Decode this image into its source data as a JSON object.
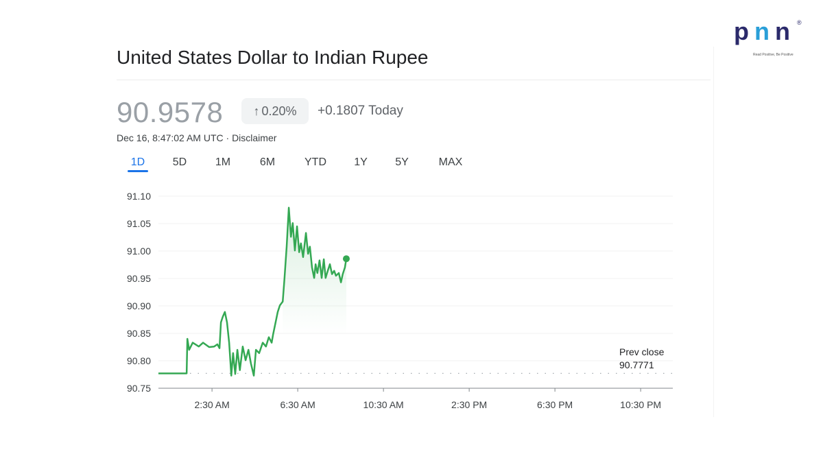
{
  "header": {
    "title": "United States Dollar to Indian Rupee"
  },
  "quote": {
    "price": "90.9578",
    "arrow": "↑",
    "percent": "0.20%",
    "change": "+0.1807 Today",
    "timestamp": "Dec 16, 8:47:02 AM UTC · Disclaimer"
  },
  "tabs": [
    {
      "label": "1D",
      "active": true
    },
    {
      "label": "5D"
    },
    {
      "label": "1M"
    },
    {
      "label": "6M"
    },
    {
      "label": "YTD"
    },
    {
      "label": "1Y"
    },
    {
      "label": "5Y"
    },
    {
      "label": "MAX"
    }
  ],
  "logo": {
    "text": "pnn",
    "tagline": "Read Positive, Be Positive",
    "registered": "®"
  },
  "colors": {
    "line": "#34a853",
    "accent": "#1a73e8",
    "brand_dark": "#2b2a6b",
    "brand_light": "#2a9fd8"
  },
  "chart_data": {
    "type": "line",
    "title": "",
    "xlabel": "",
    "ylabel": "",
    "ylim": [
      90.75,
      91.1
    ],
    "xlim": [
      "00:00",
      "24:00"
    ],
    "yticks": [
      "91.10",
      "91.05",
      "91.00",
      "90.95",
      "90.90",
      "90.85",
      "90.80",
      "90.75"
    ],
    "xticks": [
      {
        "label": "2:30 AM",
        "time": "02:30"
      },
      {
        "label": "6:30 AM",
        "time": "06:30"
      },
      {
        "label": "10:30 AM",
        "time": "10:30"
      },
      {
        "label": "2:30 PM",
        "time": "14:30"
      },
      {
        "label": "6:30 PM",
        "time": "18:30"
      },
      {
        "label": "10:30 PM",
        "time": "22:30"
      }
    ],
    "grid": true,
    "prev_close": {
      "label": "Prev close",
      "value": "90.7771"
    },
    "series": [
      {
        "points": [
          [
            "00:00",
            90.7771
          ],
          [
            "01:19",
            90.7771
          ],
          [
            "01:21",
            90.84
          ],
          [
            "01:26",
            90.82
          ],
          [
            "01:36",
            90.833
          ],
          [
            "01:53",
            90.826
          ],
          [
            "02:05",
            90.833
          ],
          [
            "02:22",
            90.825
          ],
          [
            "02:36",
            90.826
          ],
          [
            "02:45",
            90.83
          ],
          [
            "02:51",
            90.823
          ],
          [
            "02:55",
            90.87
          ],
          [
            "03:00",
            90.88
          ],
          [
            "03:06",
            90.889
          ],
          [
            "03:12",
            90.87
          ],
          [
            "03:18",
            90.833
          ],
          [
            "03:24",
            90.773
          ],
          [
            "03:29",
            90.814
          ],
          [
            "03:35",
            90.776
          ],
          [
            "03:41",
            90.82
          ],
          [
            "03:48",
            90.783
          ],
          [
            "03:56",
            90.826
          ],
          [
            "04:04",
            90.801
          ],
          [
            "04:12",
            90.82
          ],
          [
            "04:19",
            90.795
          ],
          [
            "04:27",
            90.773
          ],
          [
            "04:33",
            90.82
          ],
          [
            "04:42",
            90.814
          ],
          [
            "04:52",
            90.833
          ],
          [
            "05:01",
            90.826
          ],
          [
            "05:09",
            90.843
          ],
          [
            "05:17",
            90.833
          ],
          [
            "05:21",
            90.848
          ],
          [
            "05:28",
            90.87
          ],
          [
            "05:34",
            90.889
          ],
          [
            "05:40",
            90.901
          ],
          [
            "05:48",
            90.908
          ],
          [
            "05:53",
            90.951
          ],
          [
            "05:59",
            91.008
          ],
          [
            "06:05",
            91.079
          ],
          [
            "06:11",
            91.026
          ],
          [
            "06:16",
            91.051
          ],
          [
            "06:22",
            91.001
          ],
          [
            "06:28",
            91.045
          ],
          [
            "06:34",
            90.998
          ],
          [
            "06:39",
            91.014
          ],
          [
            "06:45",
            90.989
          ],
          [
            "06:53",
            91.033
          ],
          [
            "06:59",
            90.995
          ],
          [
            "07:04",
            91.008
          ],
          [
            "07:10",
            90.97
          ],
          [
            "07:16",
            90.951
          ],
          [
            "07:20",
            90.976
          ],
          [
            "07:25",
            90.96
          ],
          [
            "07:31",
            90.983
          ],
          [
            "07:37",
            90.951
          ],
          [
            "07:43",
            90.985
          ],
          [
            "07:48",
            90.951
          ],
          [
            "07:54",
            90.964
          ],
          [
            "08:00",
            90.976
          ],
          [
            "08:06",
            90.958
          ],
          [
            "08:12",
            90.964
          ],
          [
            "08:17",
            90.955
          ],
          [
            "08:25",
            90.96
          ],
          [
            "08:31",
            90.943
          ],
          [
            "08:36",
            90.958
          ],
          [
            "08:42",
            90.97
          ],
          [
            "08:46",
            90.986
          ]
        ]
      }
    ]
  }
}
